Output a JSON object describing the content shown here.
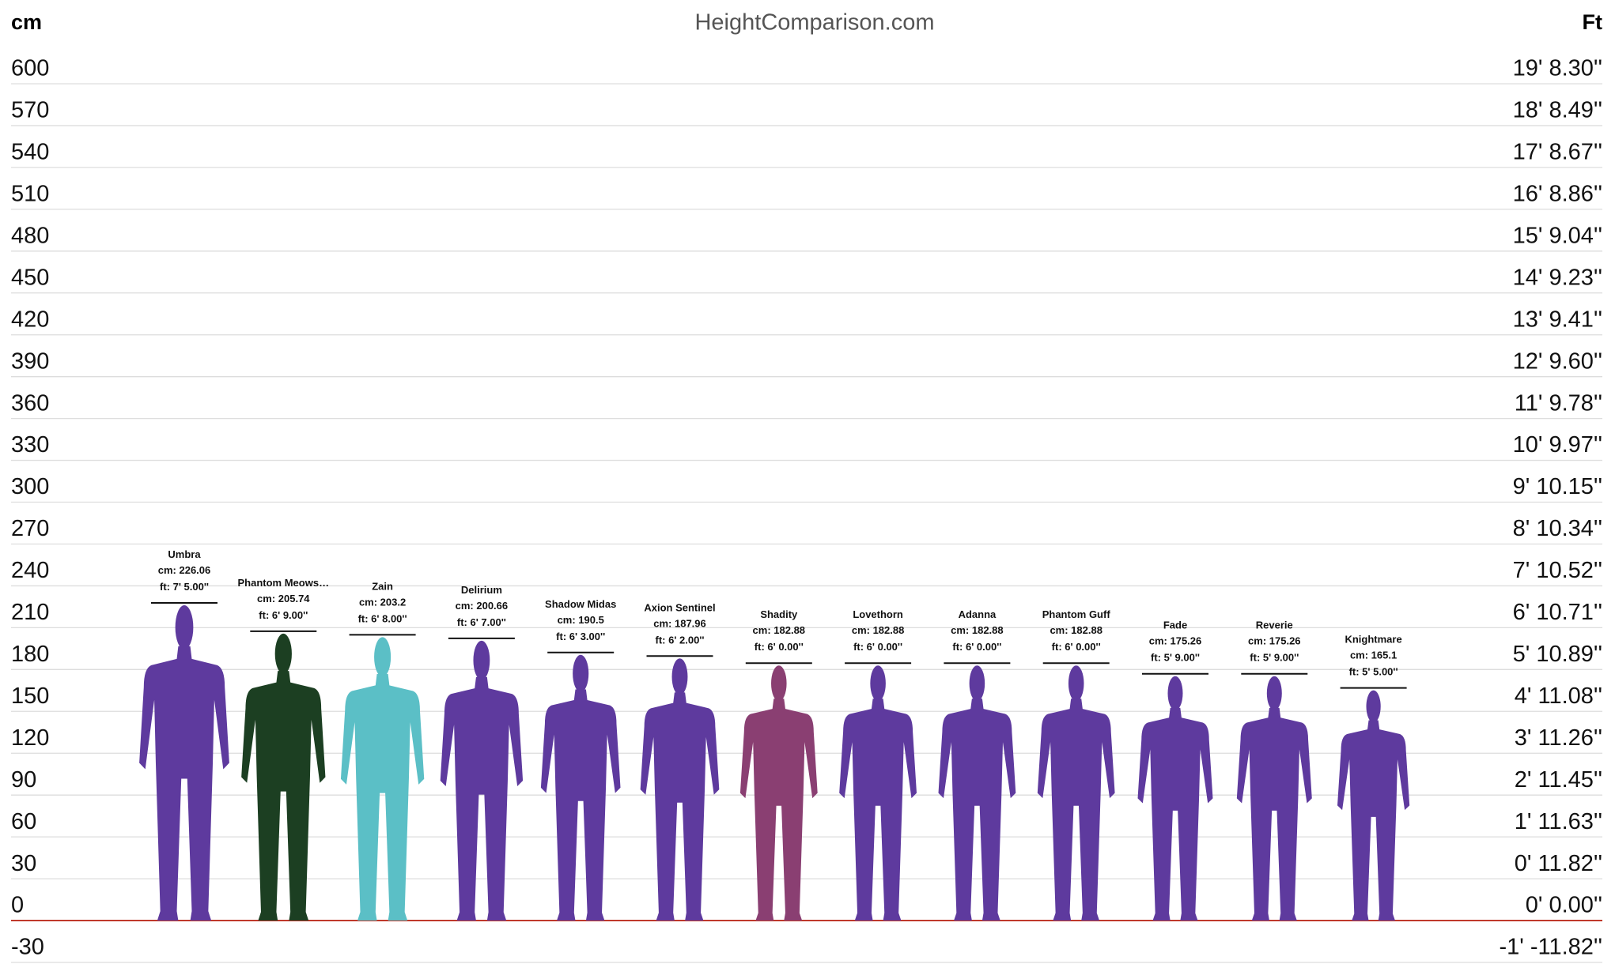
{
  "chart_data": {
    "type": "height-comparison",
    "title": "HeightComparison.com",
    "y_axis_label": "cm",
    "y2_axis_label": "Ft",
    "categories": [
      "Umbra",
      "Phantom Meows…",
      "Zain",
      "Delirium",
      "Shadow Midas",
      "Axion Sentinel",
      "Shadity",
      "Lovethorn",
      "Adanna",
      "Phantom Guff",
      "Fade",
      "Reverie",
      "Knightmare"
    ],
    "values": [
      226.06,
      205.74,
      203.2,
      200.66,
      190.5,
      187.96,
      182.88,
      182.88,
      182.88,
      182.88,
      175.26,
      175.26,
      165.1
    ],
    "value_labels": [
      "cm: 226.06",
      "cm: 205.74",
      "cm: 203.2",
      "cm: 200.66",
      "cm: 190.5",
      "cm: 187.96",
      "cm: 182.88",
      "cm: 182.88",
      "cm: 182.88",
      "cm: 182.88",
      "cm: 175.26",
      "cm: 175.26",
      "cm: 165.1"
    ],
    "ft_labels": [
      "ft: 7' 5.00''",
      "ft: 6' 9.00''",
      "ft: 6' 8.00''",
      "ft: 6' 7.00''",
      "ft: 6' 3.00''",
      "ft: 6' 2.00''",
      "ft: 6' 0.00''",
      "ft: 6' 0.00''",
      "ft: 6' 0.00''",
      "ft: 6' 0.00''",
      "ft: 5' 9.00''",
      "ft: 5' 9.00''",
      "ft: 5' 5.00''"
    ],
    "colors": [
      "#5e3a9e",
      "#1c3f22",
      "#5bbfc6",
      "#5e3a9e",
      "#5e3a9e",
      "#5e3a9e",
      "#8a3f72",
      "#5e3a9e",
      "#5e3a9e",
      "#5e3a9e",
      "#5e3a9e",
      "#5e3a9e",
      "#5e3a9e"
    ],
    "ylim": [
      -30,
      600
    ],
    "yticks": [
      600,
      570,
      540,
      510,
      480,
      450,
      420,
      390,
      360,
      330,
      300,
      270,
      240,
      210,
      180,
      150,
      120,
      90,
      60,
      30,
      0,
      -30
    ],
    "y2lim": [
      -30,
      600
    ],
    "y2ticks": [
      {
        "value": 600,
        "label": "19' 8.30''"
      },
      {
        "value": 570,
        "label": "18' 8.49''"
      },
      {
        "value": 540,
        "label": "17' 8.67''"
      },
      {
        "value": 510,
        "label": "16' 8.86''"
      },
      {
        "value": 480,
        "label": "15' 9.04''"
      },
      {
        "value": 450,
        "label": "14' 9.23''"
      },
      {
        "value": 420,
        "label": "13' 9.41''"
      },
      {
        "value": 390,
        "label": "12' 9.60''"
      },
      {
        "value": 360,
        "label": "11' 9.78''"
      },
      {
        "value": 330,
        "label": "10' 9.97''"
      },
      {
        "value": 300,
        "label": "9' 10.15''"
      },
      {
        "value": 270,
        "label": "8' 10.34''"
      },
      {
        "value": 240,
        "label": "7' 10.52''"
      },
      {
        "value": 210,
        "label": "6' 10.71''"
      },
      {
        "value": 180,
        "label": "5' 10.89''"
      },
      {
        "value": 150,
        "label": "4' 11.08''"
      },
      {
        "value": 120,
        "label": "3' 11.26''"
      },
      {
        "value": 90,
        "label": "2' 11.45''"
      },
      {
        "value": 60,
        "label": "1' 11.63''"
      },
      {
        "value": 30,
        "label": "0' 11.82''"
      },
      {
        "value": 0,
        "label": "0' 0.00''"
      },
      {
        "value": -30,
        "label": "-1' -11.82''"
      }
    ],
    "grid": true,
    "grid_color": "#dddddd",
    "zero_line_color": "#c0392b"
  }
}
